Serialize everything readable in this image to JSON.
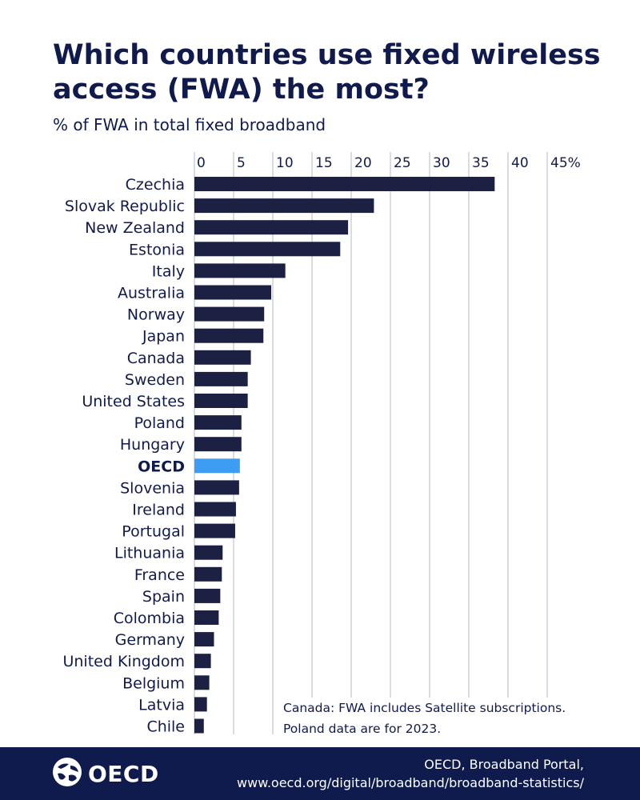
{
  "header": {
    "title": "Which countries use fixed wireless access (FWA) the most?",
    "subtitle": "% of FWA in total fixed broadband"
  },
  "chart_data": {
    "type": "bar",
    "orientation": "horizontal",
    "xlim": [
      0,
      45
    ],
    "ticks": [
      "0",
      "5",
      "10",
      "15",
      "20",
      "25",
      "30",
      "35",
      "40",
      "45%"
    ],
    "tick_values": [
      0,
      5,
      10,
      15,
      20,
      25,
      30,
      35,
      40,
      45
    ],
    "grid": true,
    "categories": [
      "Czechia",
      "Slovak Republic",
      "New Zealand",
      "Estonia",
      "Italy",
      "Australia",
      "Norway",
      "Japan",
      "Canada",
      "Sweden",
      "United States",
      "Poland",
      "Hungary",
      "OECD",
      "Slovenia",
      "Ireland",
      "Portugal",
      "Lithuania",
      "France",
      "Spain",
      "Colombia",
      "Germany",
      "United Kingdom",
      "Belgium",
      "Latvia",
      "Chile"
    ],
    "values": [
      38.3,
      22.9,
      19.6,
      18.6,
      11.6,
      9.8,
      8.9,
      8.8,
      7.2,
      6.8,
      6.8,
      6.0,
      6.0,
      5.8,
      5.7,
      5.3,
      5.2,
      3.6,
      3.5,
      3.3,
      3.1,
      2.5,
      2.1,
      1.9,
      1.6,
      1.2
    ],
    "highlight": "OECD"
  },
  "colors": {
    "bar": "#1c2143",
    "highlight": "#3d9df2",
    "grid": "#b5b8c8",
    "footer": "#0f1b4d"
  },
  "note": {
    "line1": "Canada: FWA includes Satellite subscriptions.",
    "line2": "Poland data are for 2023."
  },
  "footer": {
    "logo_text": "OECD",
    "logo_icon": "globe-icon",
    "source_line1": "OECD, Broadband Portal,",
    "source_line2": "www.oecd.org/digital/broadband/broadband-statistics/"
  }
}
